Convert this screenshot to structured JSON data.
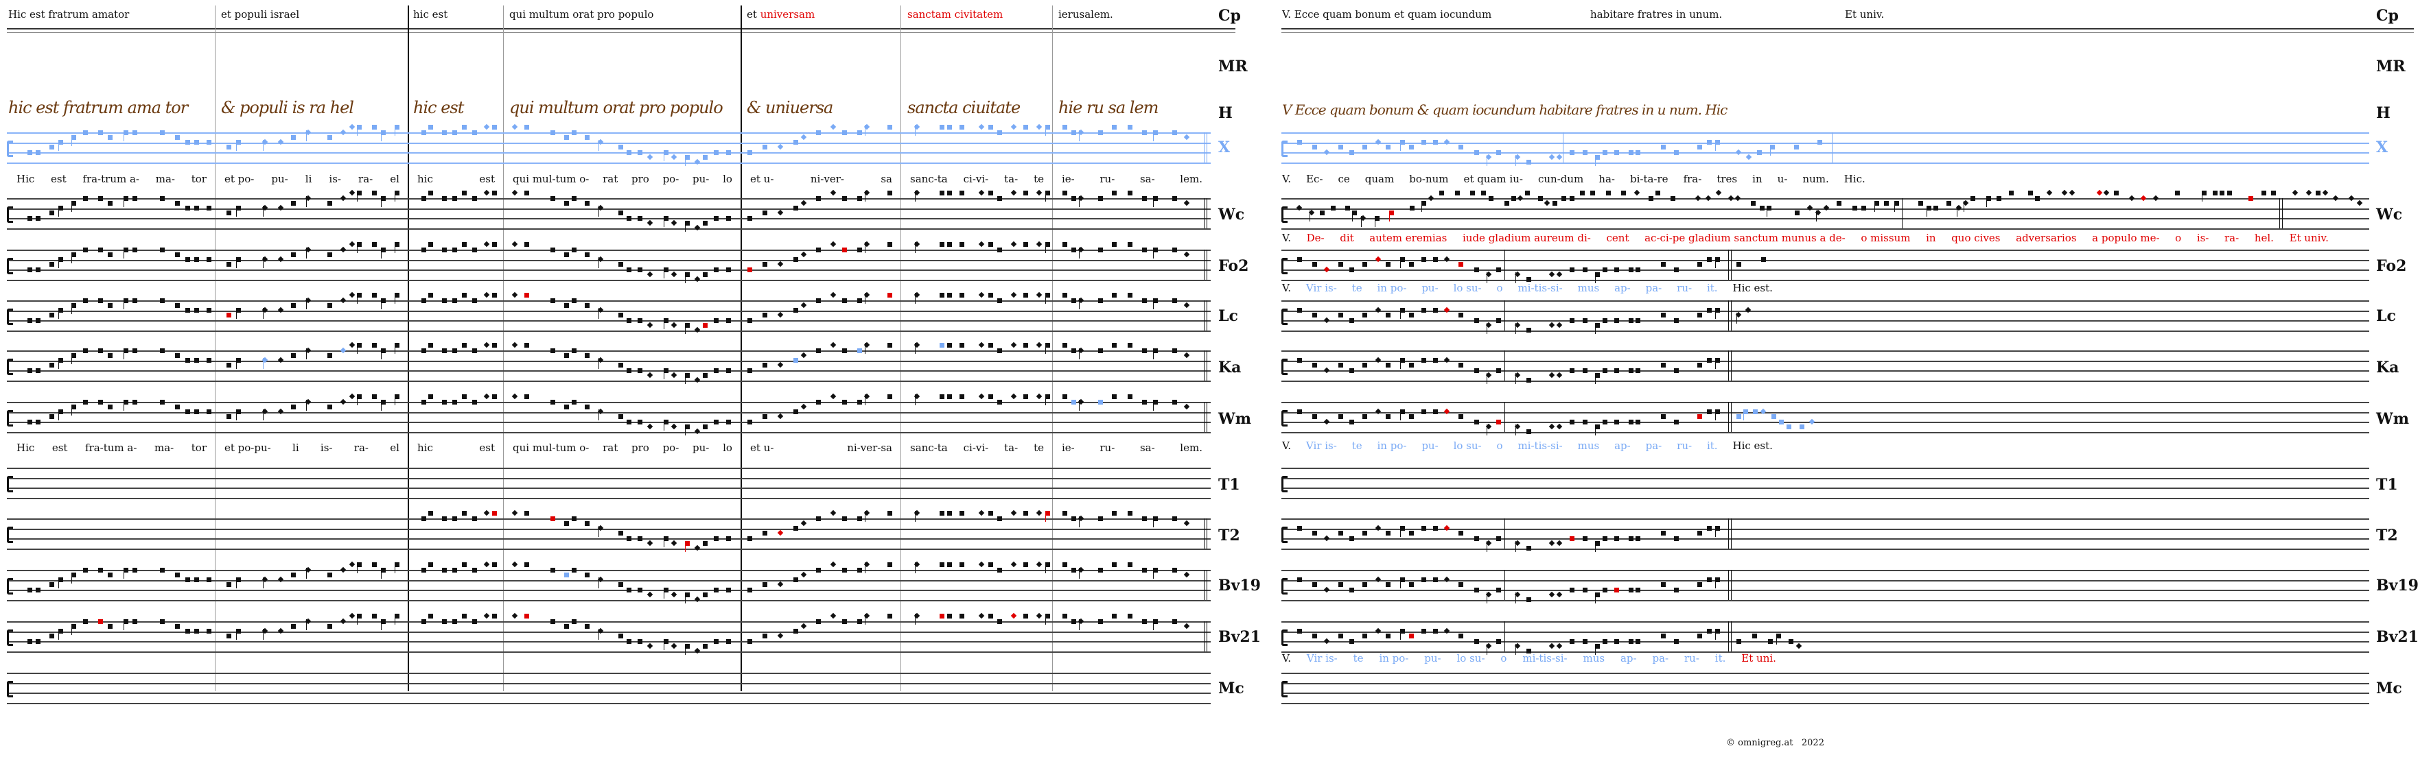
{
  "left_panel": {
    "header": [
      {
        "text": "Hic est fratrum amator"
      },
      {
        "text": "et populi israel"
      },
      {
        "text": "hic est"
      },
      {
        "text": "qui multum orat pro populo"
      },
      {
        "text": "et ",
        "red": "universam"
      },
      {
        "red": "sanctam civitatem"
      },
      {
        "text": "ierusalem."
      }
    ],
    "manuscript": [
      "hic est fratrum ama tor",
      "& populi is ra hel",
      "hic est",
      "qui multum orat pro populo",
      "& uniuersa",
      "sancta ciuitate",
      "hie ru sa lem"
    ],
    "lyrics_top": [
      [
        "Hic",
        "est",
        "fra-trum a-",
        "ma-",
        "tor"
      ],
      [
        "et po-",
        "pu-",
        "li",
        "is-",
        "ra-",
        "el"
      ],
      [
        "hic",
        "est"
      ],
      [
        "qui mul-tum o-",
        "rat",
        "pro",
        "po-",
        "pu-",
        "lo"
      ],
      [
        "et u-",
        "ni-ver-",
        "sa"
      ],
      [
        "sanc-ta",
        "ci-vi-",
        "ta-",
        "te"
      ],
      [
        "ie-",
        "ru-",
        "sa-",
        "lem."
      ]
    ],
    "lyrics_bottom": [
      [
        "Hic",
        "est",
        "fra-tum a-",
        "ma-",
        "tor"
      ],
      [
        "et po-pu-",
        "li",
        "is-",
        "ra-",
        "el"
      ],
      [
        "hic",
        "est"
      ],
      [
        "qui mul-tum o-",
        "rat",
        "pro",
        "po-",
        "pu-",
        "lo"
      ],
      [
        "et u-",
        "ni-ver-sa"
      ],
      [
        "sanc-ta",
        "ci-vi-",
        "ta-",
        "te"
      ],
      [
        "ie-",
        "ru-",
        "sa-",
        "lem."
      ]
    ]
  },
  "right_panel": {
    "header": [
      {
        "text": "V. Ecce quam bonum et quam iocundum"
      },
      {
        "text": "habitare fratres in unum."
      },
      {
        "text": "Et univ."
      }
    ],
    "manuscript": "V Ecce quam bonum & quam iocundum habitare fratres in u num. Hic",
    "lyrics_ecce": [
      "V.",
      "Ec-",
      "ce",
      "quam",
      "bo-num",
      "et quam iu-",
      "cun-dum",
      "ha-",
      "bi-ta-re",
      "fra-",
      "tres",
      "in",
      "u-",
      "num.",
      "Hic."
    ],
    "lyrics_dedit": {
      "prefix": "V.",
      "red": [
        "De-",
        "dit",
        "autem eremias",
        "iude gladium aureum di-",
        "cent",
        "ac-ci-pe gladium sanctum munus a de-",
        "o missum",
        "in",
        "quo cives",
        "adversarios",
        "a populo me-",
        "o",
        "is-",
        "ra-",
        "hel.",
        "Et univ."
      ]
    },
    "lyrics_vir": {
      "prefix": "V.",
      "blue": [
        "Vir is-",
        "te",
        "in po-",
        "pu-",
        "lo su-",
        "o",
        "mi-tis-si-",
        "mus",
        "ap-",
        "pa-",
        "ru-",
        "it."
      ],
      "suffix": "Hic est."
    },
    "lyrics_vir_end": {
      "prefix": "V.",
      "blue": [
        "Vir is-",
        "te",
        "in po-",
        "pu-",
        "lo su-",
        "o",
        "mi-tis-si-",
        "mus",
        "ap-",
        "pa-",
        "ru-",
        "it."
      ],
      "suffix_red": "Et uni."
    }
  },
  "row_labels": [
    "Cp",
    "MR",
    "H",
    "X",
    "Wc",
    "Fo2",
    "Lc",
    "Ka",
    "Wm",
    "T1",
    "T2",
    "Bv19",
    "Bv21",
    "Mc"
  ],
  "footer": {
    "copyright": "©  omnigreg.at",
    "year": "2022"
  },
  "colors": {
    "variant_red": "#e00000",
    "x_blue": "#7aaaf5",
    "variant_green": "#6a9a70",
    "manuscript_brown": "#6b3a10"
  }
}
